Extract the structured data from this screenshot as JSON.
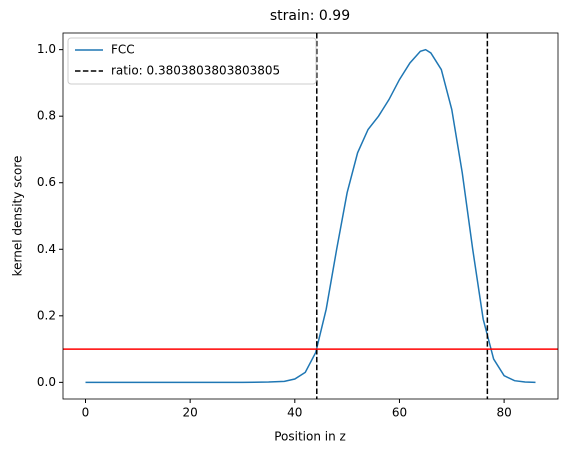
{
  "chart_data": {
    "type": "line",
    "title": "strain: 0.99",
    "xlabel": "Position in z",
    "ylabel": "kernel density score",
    "x": [
      0,
      5,
      10,
      15,
      20,
      25,
      30,
      35,
      38,
      40,
      42,
      44,
      46,
      48,
      50,
      52,
      54,
      56,
      58,
      60,
      62,
      64,
      65,
      66,
      68,
      70,
      72,
      74,
      76,
      78,
      80,
      82,
      84,
      86
    ],
    "series": [
      {
        "name": "FCC",
        "color": "#1f77b4",
        "values": [
          0,
          0,
          0,
          0,
          0,
          0,
          0,
          0.001,
          0.003,
          0.01,
          0.03,
          0.09,
          0.22,
          0.4,
          0.57,
          0.69,
          0.76,
          0.8,
          0.85,
          0.91,
          0.96,
          0.995,
          1.0,
          0.99,
          0.94,
          0.82,
          0.63,
          0.4,
          0.19,
          0.07,
          0.02,
          0.005,
          0.001,
          0
        ]
      }
    ],
    "vlines": {
      "name": "ratio: 0.3803803803803805",
      "color": "#000000",
      "values": [
        44.2,
        76.8
      ]
    },
    "hline": {
      "value": 0.1,
      "color": "#ff0000"
    },
    "xlim": [
      -4.3,
      90.3
    ],
    "ylim": [
      -0.05,
      1.05
    ],
    "xticks": [
      0,
      20,
      40,
      60,
      80
    ],
    "yticks": [
      {
        "value": 0,
        "label": "0.0"
      },
      0.2,
      0.4,
      0.6,
      0.8,
      {
        "value": 1,
        "label": "1.0"
      }
    ],
    "legend": "upper left"
  }
}
